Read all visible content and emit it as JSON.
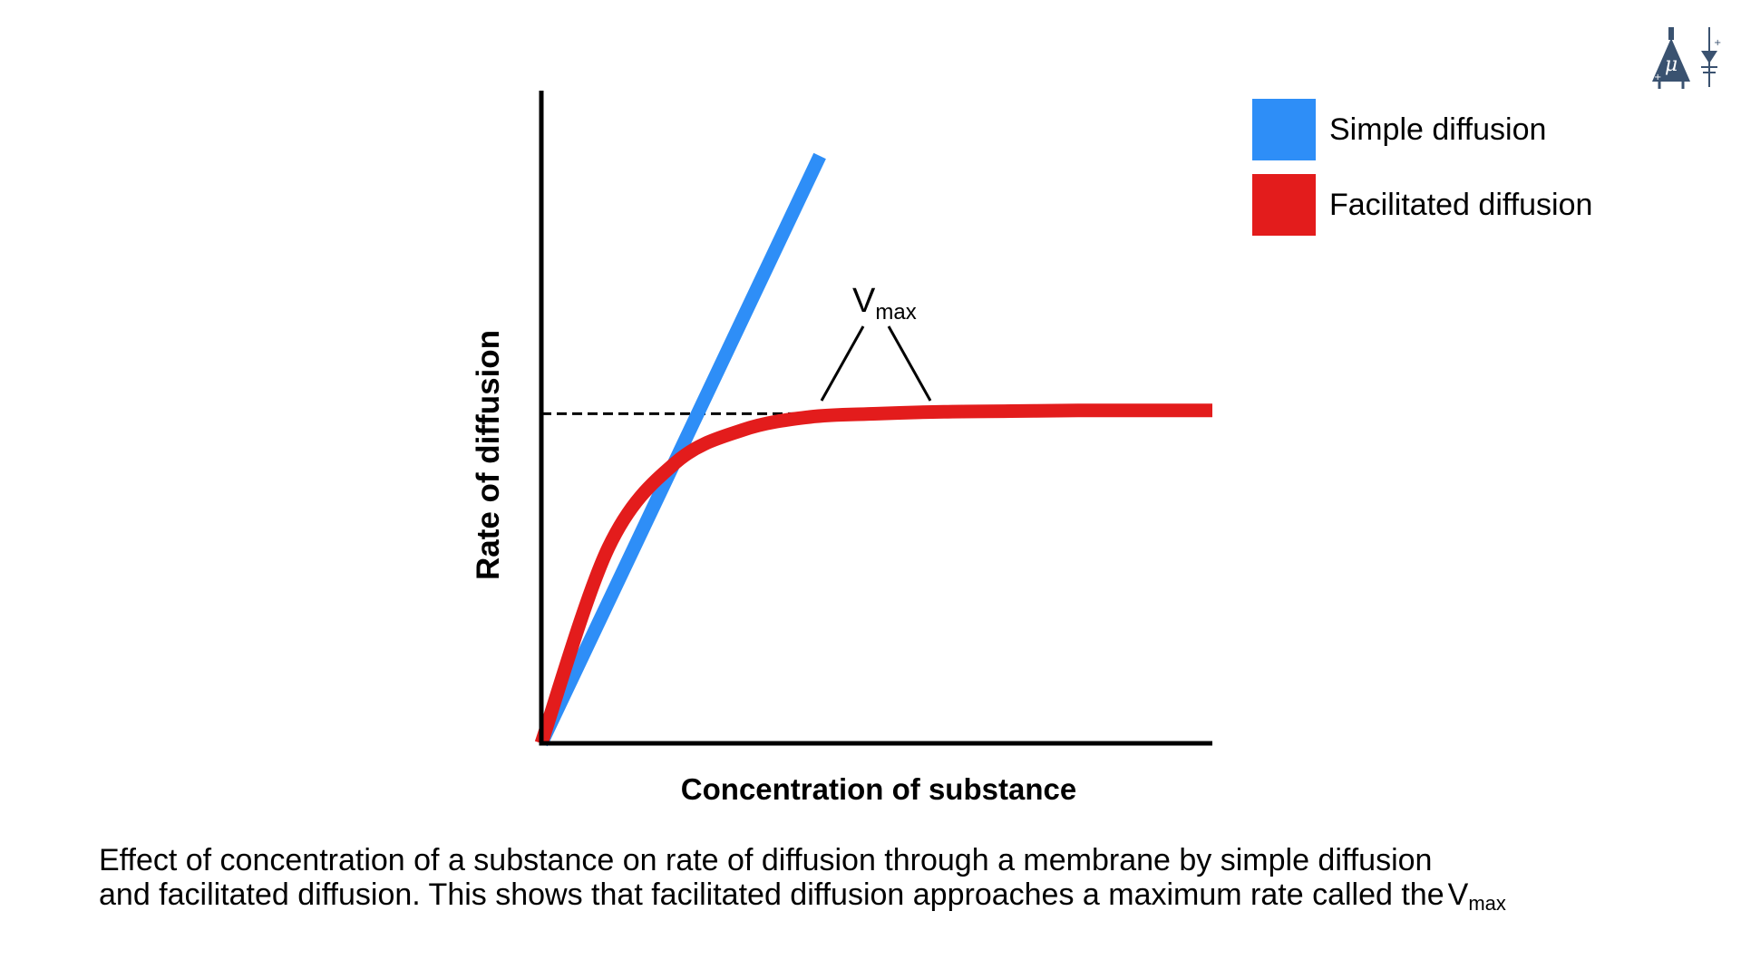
{
  "chart_data": {
    "type": "line",
    "xlabel": "Concentration of substance",
    "ylabel": "Rate of diffusion",
    "xlim": [
      0,
      1
    ],
    "ylim": [
      0,
      1
    ],
    "grid": false,
    "legend_placement": "top-right",
    "series": [
      {
        "name": "Simple diffusion",
        "color": "#2e8ef7",
        "x": [
          0,
          0.415
        ],
        "y": [
          0,
          0.9
        ]
      },
      {
        "name": "Facilitated diffusion",
        "color": "#e31c1c",
        "x": [
          0,
          0.1,
          0.2,
          0.3,
          0.4,
          0.5,
          0.6,
          0.7,
          0.8,
          0.9,
          1.0
        ],
        "y": [
          0,
          0.3,
          0.43,
          0.48,
          0.5,
          0.505,
          0.508,
          0.509,
          0.51,
          0.51,
          0.51
        ]
      }
    ],
    "reference_line": {
      "y": 0.505,
      "style": "dashed",
      "color": "#000000"
    },
    "annotation": {
      "main": "V",
      "sub": "max"
    }
  },
  "caption": {
    "line1": "Effect of concentration of a substance on rate of diffusion through a membrane by simple diffusion",
    "line2": "and facilitated diffusion. This shows that facilitated diffusion approaches a maximum rate called the",
    "vmax_main": "V",
    "vmax_sub": "max"
  },
  "logo": {
    "icon": "mu-flask-logo-icon",
    "color": "#3a5270"
  }
}
